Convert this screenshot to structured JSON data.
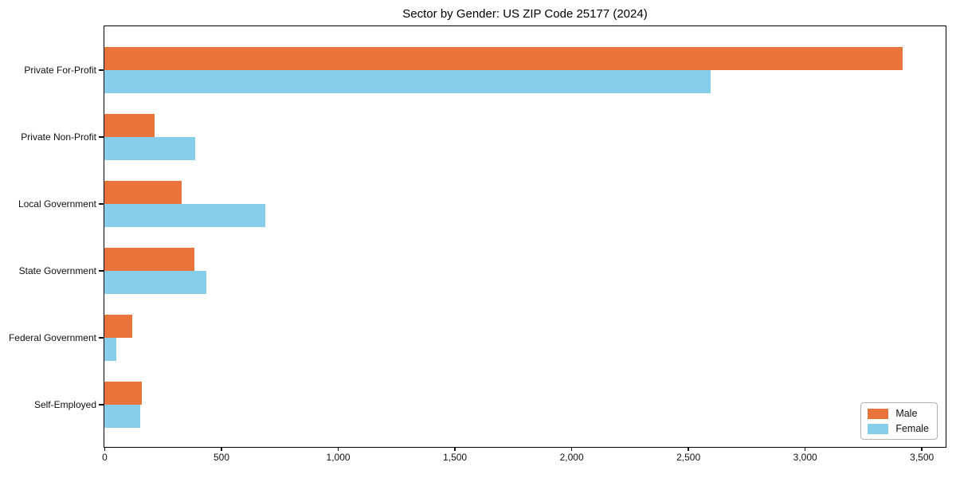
{
  "chart_data": {
    "type": "bar",
    "orientation": "horizontal",
    "title": "Sector by Gender: US ZIP Code 25177 (2024)",
    "categories": [
      "Private For-Profit",
      "Private Non-Profit",
      "Local Government",
      "State Government",
      "Federal Government",
      "Self-Employed"
    ],
    "series": [
      {
        "name": "Male",
        "color": "#e8743b",
        "values": [
          3420,
          215,
          330,
          385,
          120,
          160
        ]
      },
      {
        "name": "Female",
        "color": "#87ceeb",
        "values": [
          2595,
          390,
          690,
          435,
          50,
          155
        ]
      }
    ],
    "xlabel": "",
    "ylabel": "",
    "xlim": [
      0,
      3600
    ],
    "x_ticks": [
      0,
      500,
      1000,
      1500,
      2000,
      2500,
      3000,
      3500
    ],
    "x_tick_labels": [
      "0",
      "500",
      "1,000",
      "1,500",
      "2,000",
      "2,500",
      "3,000",
      "3,500"
    ],
    "grid": false,
    "legend_position": "lower right",
    "frame": "full-box"
  },
  "colors": {
    "male": "#e8743b",
    "female": "#87ceeb",
    "spine": "#000000",
    "background": "#ffffff",
    "legend_border": "#b3b3b3"
  }
}
